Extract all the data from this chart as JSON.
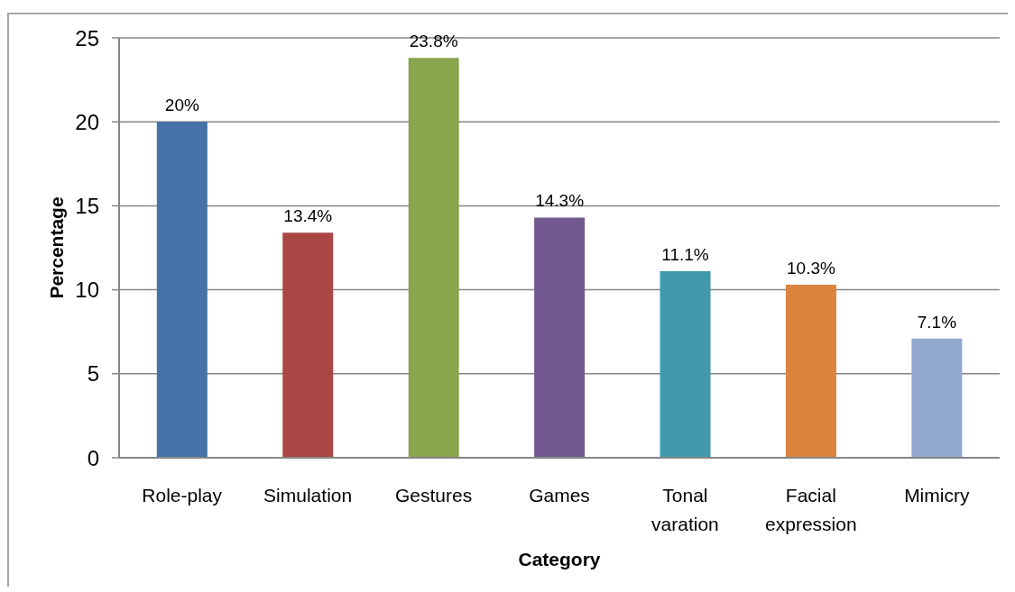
{
  "chart_data": {
    "type": "bar",
    "xlabel": "Category",
    "ylabel": "Percentage",
    "categories": [
      "Role-play",
      "Simulation",
      "Gestures",
      "Games",
      "Tonal varation",
      "Facial expression",
      "Mimicry"
    ],
    "values": [
      20,
      13.4,
      23.8,
      14.3,
      11.1,
      10.3,
      7.1
    ],
    "colors": [
      "#4572a7",
      "#aa4643",
      "#89a54e",
      "#71588f",
      "#4198af",
      "#db843d",
      "#93a9cf"
    ],
    "value_labels": [
      "20%",
      "13.4%",
      "23.8%",
      "14.3%",
      "11.1%",
      "10.3%",
      "7.1%"
    ],
    "ylim": [
      0,
      25
    ],
    "yticks": [
      0,
      5,
      10,
      15,
      20,
      25
    ],
    "grid": "y"
  }
}
